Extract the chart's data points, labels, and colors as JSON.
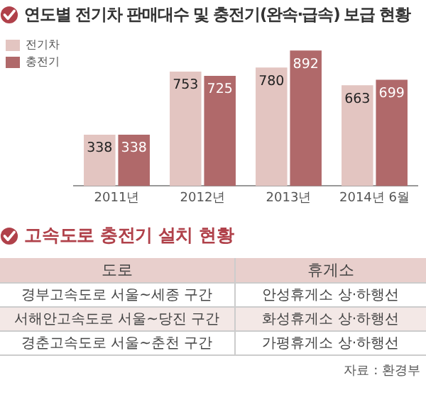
{
  "chart_data": [
    {
      "type": "bar",
      "title": "연도별 전기차 판매대수 및 충전기(완속·급속) 보급 현황",
      "categories": [
        "2011년",
        "2012년",
        "2013년",
        "2014년 6월"
      ],
      "series": [
        {
          "name": "전기차",
          "color": "#e3c5c1",
          "values": [
            338,
            753,
            780,
            663
          ]
        },
        {
          "name": "충전기",
          "color": "#b0696a",
          "values": [
            338,
            725,
            892,
            699
          ]
        }
      ],
      "data_labels": true,
      "legend": "top left",
      "grid": false
    },
    {
      "type": "other",
      "title": "고속도로 충전기 설치 현황",
      "annotations": [
        "도로",
        "휴게소",
        "경부고속도로 서울~세종 구간",
        "안성휴게소 상·하행선",
        "서해안고속도로 서울~당진 구간",
        "화성휴게소 상·하행선",
        "경춘고속도로 서울~춘천 구간",
        "가평휴게소 상·하행선",
        "자료 : 환경부"
      ]
    }
  ]
}
